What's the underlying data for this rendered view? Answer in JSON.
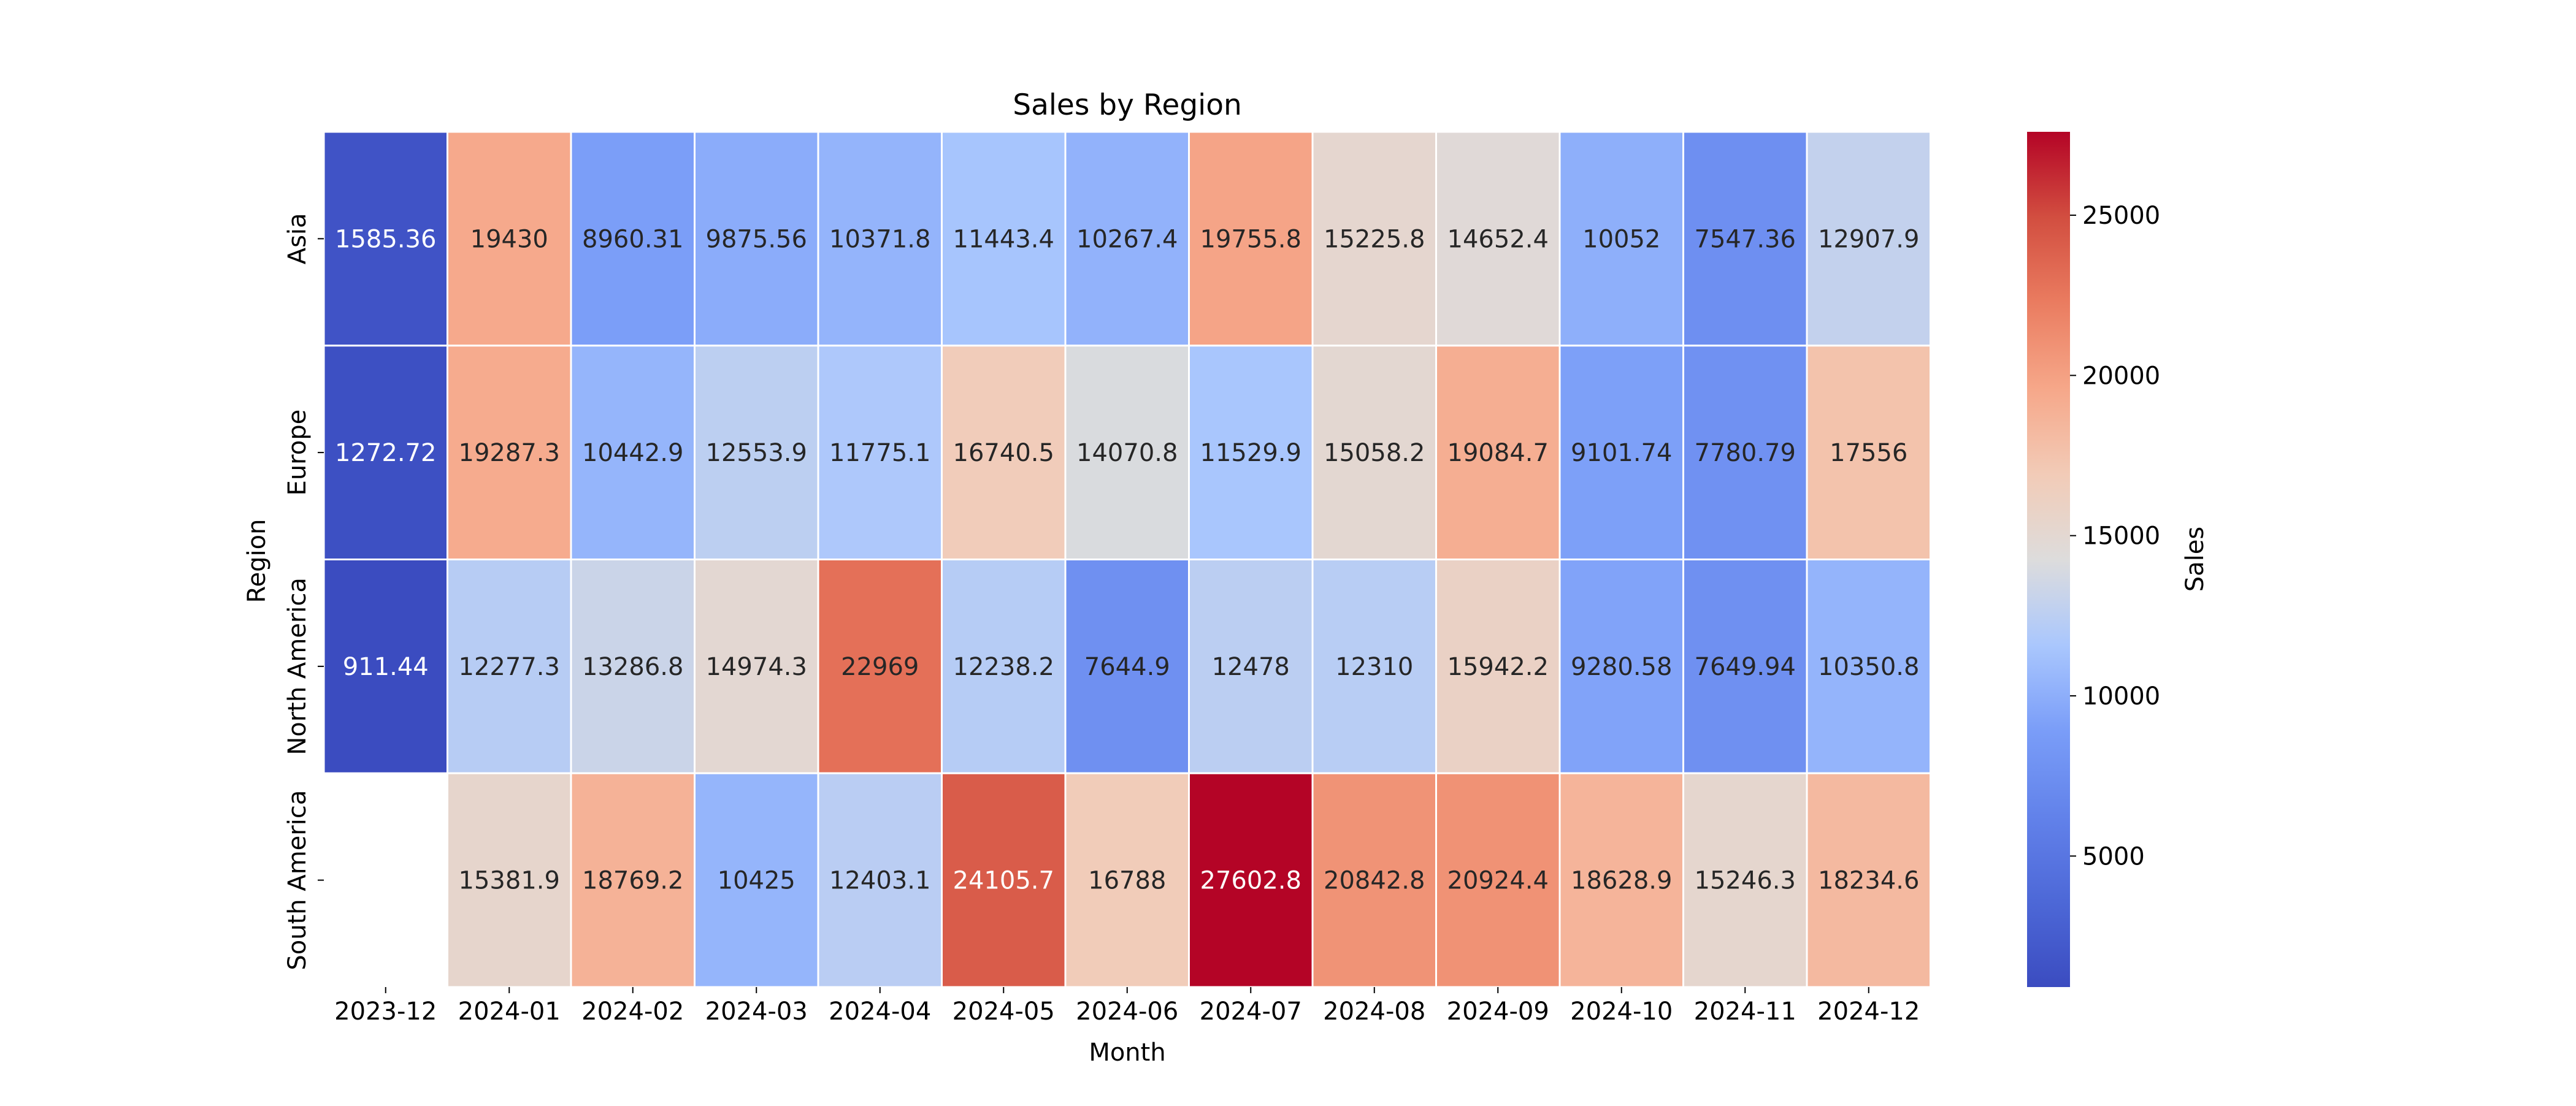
{
  "chart_data": {
    "type": "heatmap",
    "title": "Sales by Region",
    "xlabel": "Month",
    "ylabel": "Region",
    "x_categories": [
      "2023-12",
      "2024-01",
      "2024-02",
      "2024-03",
      "2024-04",
      "2024-05",
      "2024-06",
      "2024-07",
      "2024-08",
      "2024-09",
      "2024-10",
      "2024-11",
      "2024-12"
    ],
    "y_categories": [
      "Asia",
      "Europe",
      "North America",
      "South America"
    ],
    "values": [
      [
        1585.36,
        19430,
        8960.31,
        9875.56,
        10371.8,
        11443.4,
        10267.4,
        19755.8,
        15225.8,
        14652.4,
        10052,
        7547.36,
        12907.9
      ],
      [
        1272.72,
        19287.3,
        10442.9,
        12553.9,
        11775.1,
        16740.5,
        14070.8,
        11529.9,
        15058.2,
        19084.7,
        9101.74,
        7780.79,
        17556
      ],
      [
        911.44,
        12277.3,
        13286.8,
        14974.3,
        22969,
        12238.2,
        7644.9,
        12478,
        12310,
        15942.2,
        9280.58,
        7649.94,
        10350.8
      ],
      [
        null,
        15381.9,
        18769.2,
        10425,
        12403.1,
        24105.7,
        16788,
        27602.8,
        20842.8,
        20924.4,
        18628.9,
        15246.3,
        18234.6
      ]
    ],
    "colormap": "coolwarm",
    "color_range": [
      911.44,
      27602.8
    ],
    "colorbar": {
      "label": "Sales",
      "ticks": [
        5000,
        10000,
        15000,
        20000,
        25000
      ]
    },
    "annotations": true
  }
}
